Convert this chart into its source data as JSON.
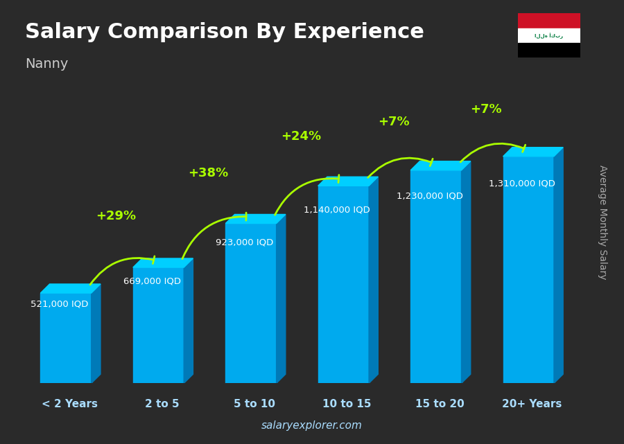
{
  "title": "Salary Comparison By Experience",
  "subtitle": "Nanny",
  "ylabel": "Average Monthly Salary",
  "watermark": "salaryexplorer.com",
  "categories": [
    "< 2 Years",
    "2 to 5",
    "5 to 10",
    "10 to 15",
    "15 to 20",
    "20+ Years"
  ],
  "values": [
    521000,
    669000,
    923000,
    1140000,
    1230000,
    1310000
  ],
  "value_labels": [
    "521,000 IQD",
    "669,000 IQD",
    "923,000 IQD",
    "1,140,000 IQD",
    "1,230,000 IQD",
    "1,310,000 IQD"
  ],
  "pct_labels": [
    "+29%",
    "+38%",
    "+24%",
    "+7%",
    "+7%"
  ],
  "bar_color_top": "#00cfff",
  "bar_color_main": "#00aaee",
  "bar_color_side": "#007ab8",
  "bar_color_dark": "#005580",
  "background_color": "#2a2a2a",
  "title_color": "#ffffff",
  "subtitle_color": "#cccccc",
  "value_label_color": "#ffffff",
  "pct_color": "#aaff00",
  "axis_label_color": "#aaddff",
  "watermark_color": "#aaddff",
  "figsize": [
    9.0,
    6.41
  ],
  "dpi": 100
}
